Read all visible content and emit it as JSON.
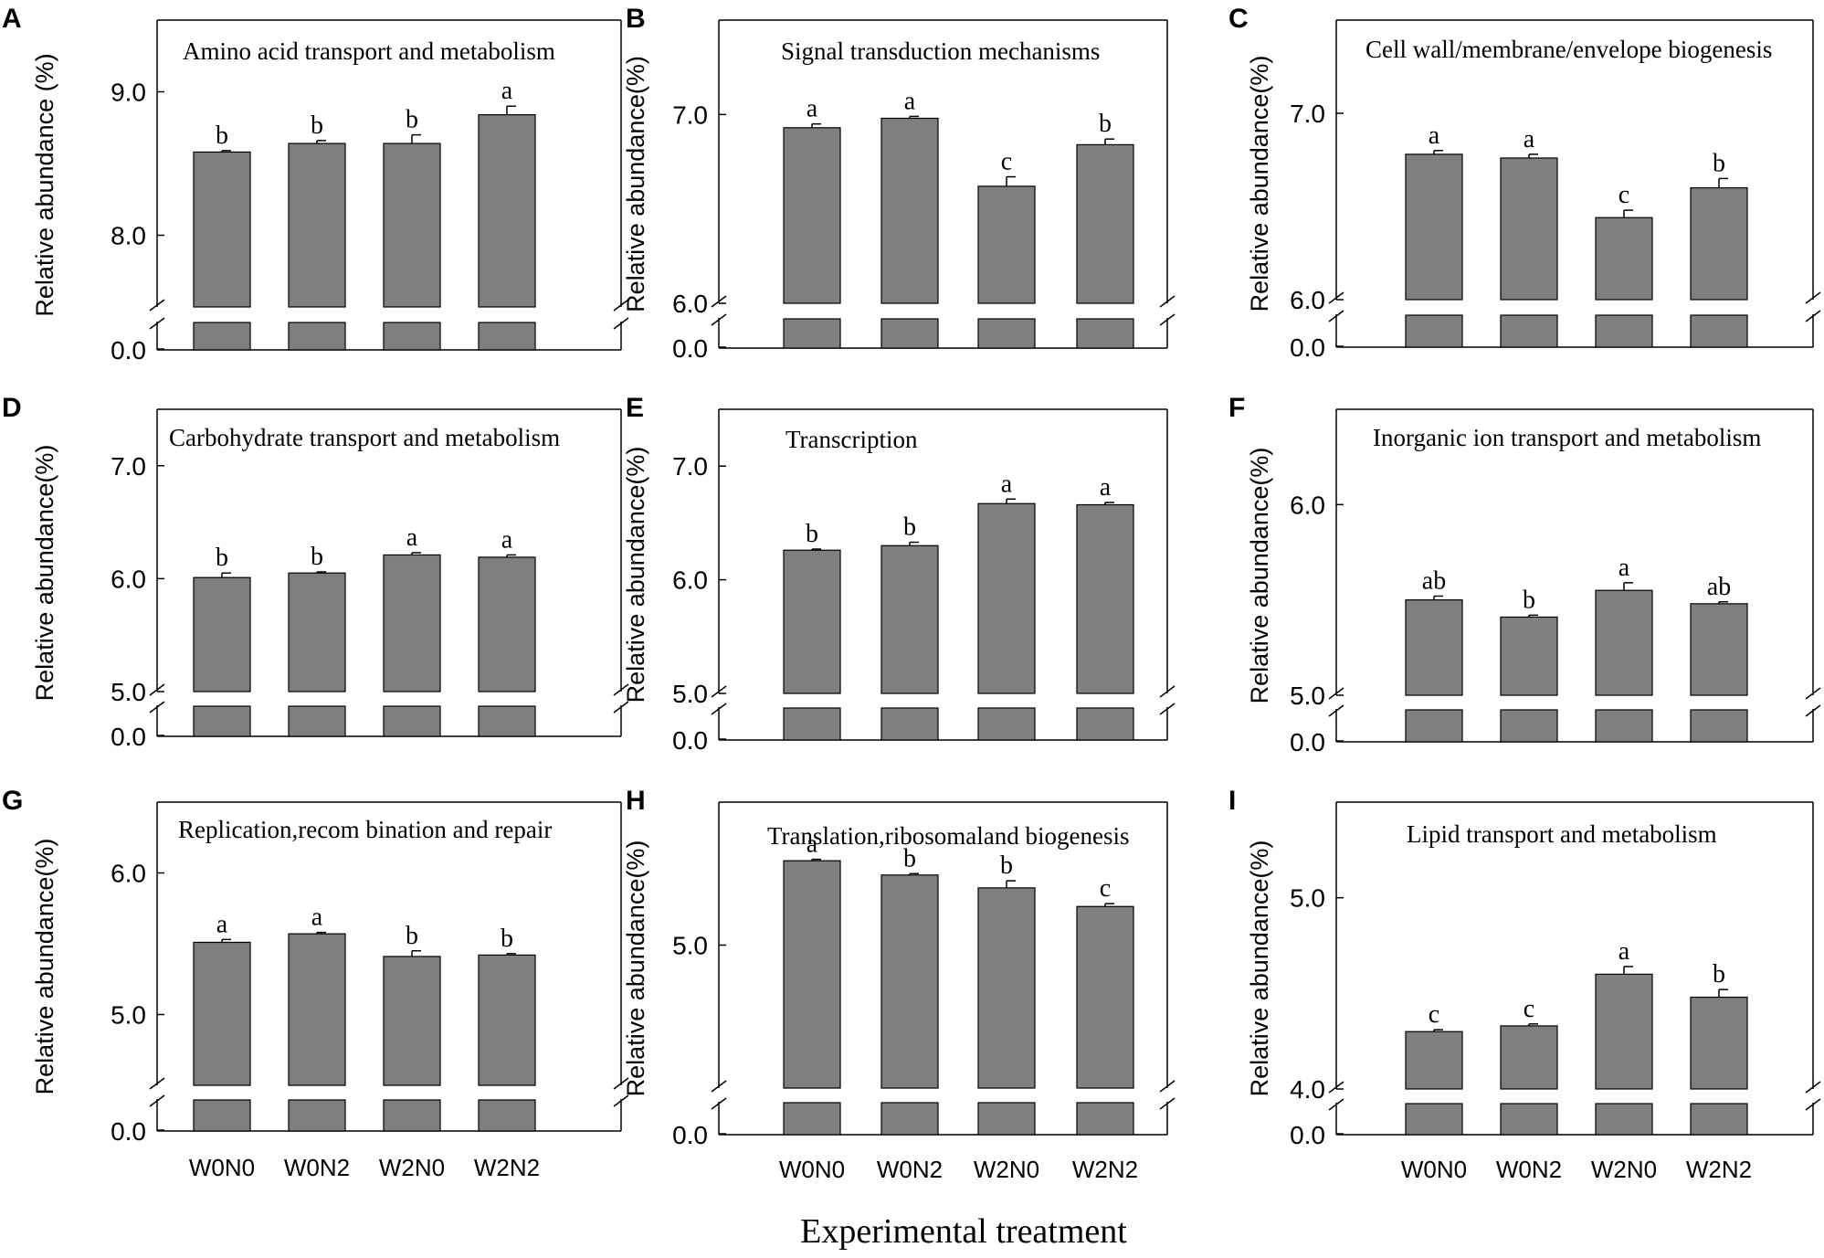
{
  "figure": {
    "xlabel": "Experimental treatment",
    "categories": [
      "W0N0",
      "W0N2",
      "W2N0",
      "W2N2"
    ],
    "ylabel": "Relative abundance(%)",
    "ylabel_a": "Relative abundance (%)",
    "bar_color": "#7f7f7f"
  },
  "chart_data": [
    {
      "type": "bar",
      "panel": "A",
      "title": "Amino acid transport and metabolism",
      "ylabel": "Relative abundance (%)",
      "categories": [
        "W0N0",
        "W0N2",
        "W2N0",
        "W2N2"
      ],
      "values": [
        8.58,
        8.64,
        8.64,
        8.84
      ],
      "errors": [
        0.01,
        0.02,
        0.06,
        0.06
      ],
      "letters": [
        "b",
        "b",
        "b",
        "a"
      ],
      "ylim": [
        7.5,
        9.5
      ],
      "yticks": [
        8.0,
        9.0
      ],
      "ytick_labels": [
        "8.0",
        "9.0"
      ],
      "broken_axis_low": "0.0"
    },
    {
      "type": "bar",
      "panel": "B",
      "title": "Signal transduction mechanisms",
      "ylabel": "Relative abundance(%)",
      "categories": [
        "W0N0",
        "W0N2",
        "W2N0",
        "W2N2"
      ],
      "values": [
        6.93,
        6.98,
        6.62,
        6.84
      ],
      "errors": [
        0.02,
        0.01,
        0.05,
        0.03
      ],
      "letters": [
        "a",
        "a",
        "c",
        "b"
      ],
      "ylim": [
        6.0,
        7.5
      ],
      "yticks": [
        6.0,
        7.0
      ],
      "ytick_labels": [
        "6.0",
        "7.0"
      ],
      "broken_axis_low": "0.0"
    },
    {
      "type": "bar",
      "panel": "C",
      "title": "Cell wall/membrane/envelope biogenesis",
      "ylabel": "Relative abundance(%)",
      "categories": [
        "W0N0",
        "W0N2",
        "W2N0",
        "W2N2"
      ],
      "values": [
        6.78,
        6.76,
        6.44,
        6.6
      ],
      "errors": [
        0.02,
        0.02,
        0.04,
        0.05
      ],
      "letters": [
        "a",
        "a",
        "c",
        "b"
      ],
      "ylim": [
        6.0,
        7.5
      ],
      "yticks": [
        6.0,
        7.0
      ],
      "ytick_labels": [
        "6.0",
        "7.0"
      ],
      "broken_axis_low": "0.0"
    },
    {
      "type": "bar",
      "panel": "D",
      "title": "Carbohydrate transport and metabolism",
      "ylabel": "Relative abundance(%)",
      "categories": [
        "W0N0",
        "W0N2",
        "W2N0",
        "W2N2"
      ],
      "values": [
        6.01,
        6.05,
        6.21,
        6.19
      ],
      "errors": [
        0.04,
        0.01,
        0.02,
        0.02
      ],
      "letters": [
        "b",
        "b",
        "a",
        "a"
      ],
      "ylim": [
        5.0,
        7.5
      ],
      "yticks": [
        5.0,
        6.0,
        7.0
      ],
      "ytick_labels": [
        "5.0",
        "6.0",
        "7.0"
      ],
      "broken_axis_low": "0.0"
    },
    {
      "type": "bar",
      "panel": "E",
      "title": "Transcription",
      "ylabel": "Relative abundance(%)",
      "categories": [
        "W0N0",
        "W0N2",
        "W2N0",
        "W2N2"
      ],
      "values": [
        6.26,
        6.3,
        6.67,
        6.66
      ],
      "errors": [
        0.01,
        0.03,
        0.04,
        0.02
      ],
      "letters": [
        "b",
        "b",
        "a",
        "a"
      ],
      "ylim": [
        5.0,
        7.5
      ],
      "yticks": [
        5.0,
        6.0,
        7.0
      ],
      "ytick_labels": [
        "5.0",
        "6.0",
        "7.0"
      ],
      "broken_axis_low": "0.0"
    },
    {
      "type": "bar",
      "panel": "F",
      "title": "Inorganic ion transport and metabolism",
      "ylabel": "Relative abundance(%)",
      "categories": [
        "W0N0",
        "W0N2",
        "W2N0",
        "W2N2"
      ],
      "values": [
        5.5,
        5.41,
        5.55,
        5.48
      ],
      "errors": [
        0.02,
        0.01,
        0.04,
        0.01
      ],
      "letters": [
        "ab",
        "b",
        "a",
        "ab"
      ],
      "ylim": [
        5.0,
        6.5
      ],
      "yticks": [
        5.0,
        6.0
      ],
      "ytick_labels": [
        "5.0",
        "6.0"
      ],
      "broken_axis_low": "0.0"
    },
    {
      "type": "bar",
      "panel": "G",
      "title": "Replication,recom bination and repair",
      "ylabel": "Relative abundance(%)",
      "categories": [
        "W0N0",
        "W0N2",
        "W2N0",
        "W2N2"
      ],
      "values": [
        5.51,
        5.57,
        5.41,
        5.42
      ],
      "errors": [
        0.02,
        0.01,
        0.04,
        0.01
      ],
      "letters": [
        "a",
        "a",
        "b",
        "b"
      ],
      "ylim": [
        4.5,
        6.5
      ],
      "yticks": [
        5.0,
        6.0
      ],
      "ytick_labels": [
        "5.0",
        "6.0"
      ],
      "broken_axis_low": "0.0"
    },
    {
      "type": "bar",
      "panel": "H",
      "title": "Translation,ribosomaland biogenesis",
      "ylabel": "Relative abundance(%)",
      "categories": [
        "W0N0",
        "W0N2",
        "W2N0",
        "W2N2"
      ],
      "values": [
        5.59,
        5.49,
        5.4,
        5.27
      ],
      "errors": [
        0.01,
        0.01,
        0.05,
        0.02
      ],
      "letters": [
        "a",
        "b",
        "b",
        "c"
      ],
      "ylim": [
        4.0,
        6.0
      ],
      "yticks": [
        5.0
      ],
      "ytick_labels": [
        "5.0"
      ],
      "broken_axis_low": "0.0"
    },
    {
      "type": "bar",
      "panel": "I",
      "title": "Lipid transport and metabolism",
      "ylabel": "Relative abundance(%)",
      "categories": [
        "W0N0",
        "W0N2",
        "W2N0",
        "W2N2"
      ],
      "values": [
        4.3,
        4.33,
        4.6,
        4.48
      ],
      "errors": [
        0.01,
        0.01,
        0.04,
        0.04
      ],
      "letters": [
        "c",
        "c",
        "a",
        "b"
      ],
      "ylim": [
        4.0,
        5.5
      ],
      "yticks": [
        4.0,
        5.0
      ],
      "ytick_labels": [
        "4.0",
        "5.0"
      ],
      "broken_axis_low": "0.0"
    }
  ]
}
